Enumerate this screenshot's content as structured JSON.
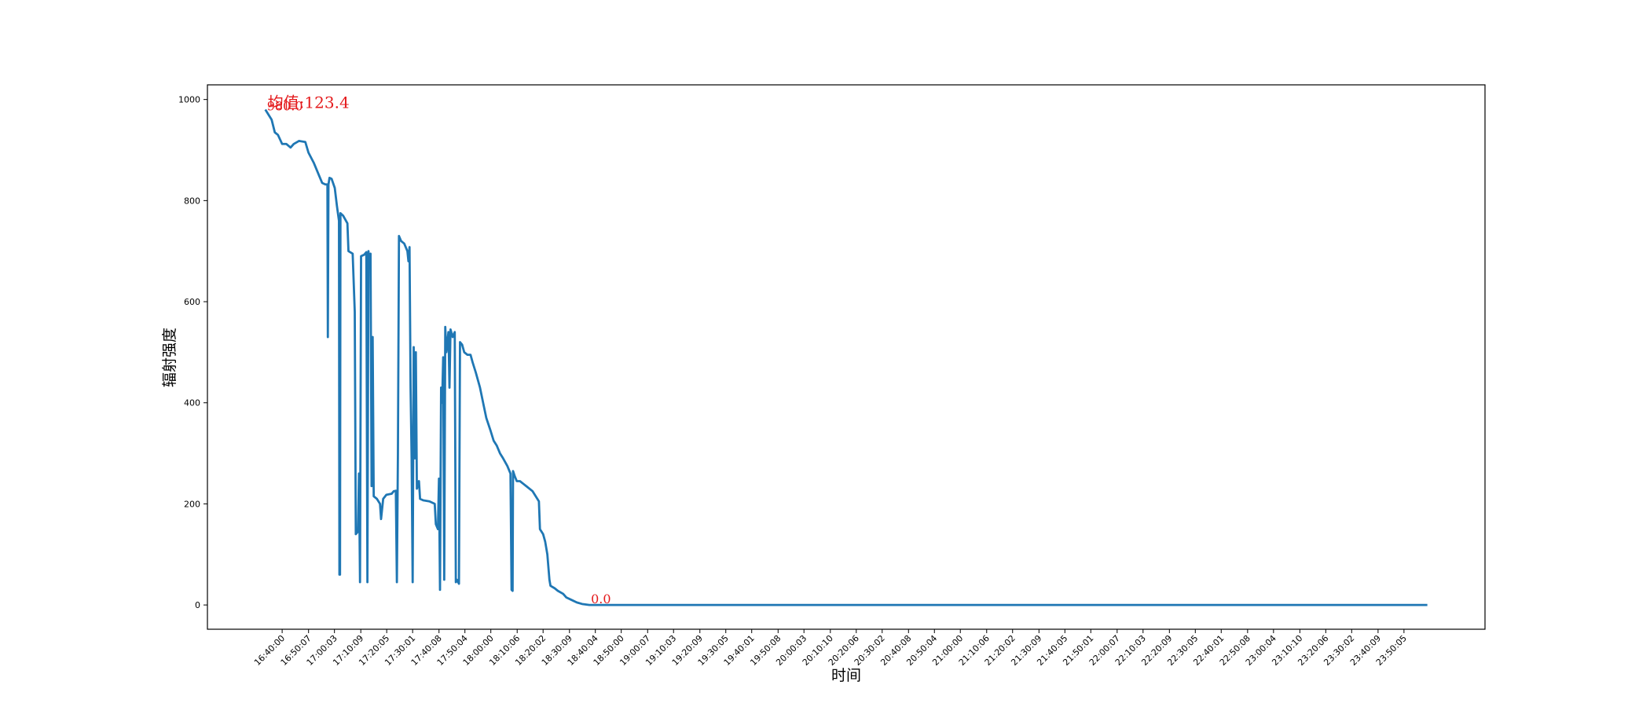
{
  "chart_data": {
    "type": "line",
    "xlabel": "时间",
    "ylabel": "辐射强度",
    "color": "#1f77b4",
    "annotations": [
      "均值:123.4",
      "980.0",
      "0.0"
    ],
    "xlim": [
      "16:11:21",
      "24:21:09"
    ],
    "ylim": [
      -48,
      1029
    ],
    "yticks": [
      0,
      200,
      400,
      600,
      800,
      1000
    ],
    "xticks": [
      "16:40:00",
      "16:50:07",
      "17:00:03",
      "17:10:09",
      "17:20:05",
      "17:30:01",
      "17:40:08",
      "17:50:04",
      "18:00:00",
      "18:10:06",
      "18:20:02",
      "18:30:09",
      "18:40:04",
      "18:50:00",
      "19:00:07",
      "19:10:03",
      "19:20:09",
      "19:30:05",
      "19:40:01",
      "19:50:08",
      "20:00:03",
      "20:10:10",
      "20:20:06",
      "20:30:02",
      "20:40:08",
      "20:50:04",
      "21:00:00",
      "21:10:06",
      "21:20:02",
      "21:30:09",
      "21:40:05",
      "21:50:01",
      "22:00:07",
      "22:10:03",
      "22:20:09",
      "22:30:05",
      "22:40:01",
      "22:50:08",
      "23:00:04",
      "23:10:10",
      "23:20:06",
      "23:30:02",
      "23:40:09",
      "23:50:05"
    ],
    "x": [
      "16:33:33",
      "16:35:58",
      "16:37:11",
      "16:38:23",
      "16:40:00",
      "16:41:37",
      "16:43:14",
      "16:44:26",
      "16:46:27",
      "16:48:53",
      "16:50:05",
      "16:52:06",
      "16:54:07",
      "16:55:20",
      "16:56:33",
      "16:57:21",
      "16:57:31",
      "16:57:45",
      "16:58:09",
      "16:58:58",
      "17:00:10",
      "17:00:59",
      "17:01:47",
      "17:01:57",
      "17:02:11",
      "17:02:21",
      "17:03:24",
      "17:05:01",
      "17:05:25",
      "17:07:02",
      "17:07:50",
      "17:08:14",
      "17:09:03",
      "17:09:27",
      "17:09:51",
      "17:10:15",
      "17:11:28",
      "17:12:16",
      "17:12:41",
      "17:13:05",
      "17:13:29",
      "17:13:53",
      "17:14:17",
      "17:14:42",
      "17:15:06",
      "17:16:19",
      "17:17:31",
      "17:17:55",
      "17:18:44",
      "17:19:57",
      "17:21:58",
      "17:22:46",
      "17:23:35",
      "17:23:59",
      "17:24:23",
      "17:24:47",
      "17:25:36",
      "17:26:48",
      "17:28:01",
      "17:28:25",
      "17:28:50",
      "17:29:14",
      "17:29:38",
      "17:30:02",
      "17:30:26",
      "17:30:51",
      "17:31:15",
      "17:31:39",
      "17:32:27",
      "17:32:52",
      "17:34:04",
      "17:36:29",
      "17:38:30",
      "17:38:55",
      "17:39:43",
      "17:40:07",
      "17:40:31",
      "17:40:56",
      "17:41:20",
      "17:41:44",
      "17:42:08",
      "17:42:32",
      "17:42:57",
      "17:43:21",
      "17:43:45",
      "17:44:09",
      "17:44:33",
      "17:45:22",
      "17:46:10",
      "17:46:35",
      "17:46:59",
      "17:47:47",
      "17:48:11",
      "17:49:00",
      "17:49:48",
      "17:51:01",
      "17:52:13",
      "17:53:01",
      "17:54:14",
      "17:55:51",
      "17:57:03",
      "17:58:16",
      "17:59:53",
      "18:01:05",
      "18:02:18",
      "18:03:31",
      "18:04:43",
      "18:06:20",
      "18:07:32",
      "18:07:57",
      "18:08:21",
      "18:08:31",
      "18:09:09",
      "18:09:57",
      "18:11:10",
      "18:12:23",
      "18:13:36",
      "18:16:01",
      "18:18:26",
      "18:18:50",
      "18:20:03",
      "18:20:51",
      "18:21:40",
      "18:22:28",
      "18:22:52",
      "18:24:29",
      "18:25:42",
      "18:27:43",
      "18:28:55",
      "18:30:56",
      "18:32:57",
      "18:34:58",
      "18:37:47",
      "23:59:03"
    ],
    "values": [
      980,
      960,
      935,
      930,
      912,
      912,
      905,
      912,
      918,
      916,
      895,
      875,
      850,
      835,
      832,
      832,
      530,
      832,
      845,
      843,
      825,
      790,
      760,
      60,
      60,
      775,
      770,
      755,
      700,
      695,
      580,
      140,
      145,
      260,
      45,
      690,
      693,
      698,
      45,
      700,
      670,
      695,
      235,
      530,
      215,
      210,
      200,
      170,
      210,
      218,
      220,
      225,
      226,
      45,
      300,
      730,
      720,
      715,
      700,
      680,
      708,
      430,
      290,
      45,
      510,
      290,
      500,
      230,
      245,
      210,
      207,
      205,
      200,
      160,
      150,
      250,
      30,
      430,
      400,
      490,
      50,
      550,
      500,
      520,
      540,
      430,
      545,
      530,
      540,
      45,
      50,
      42,
      520,
      515,
      500,
      495,
      495,
      480,
      460,
      430,
      400,
      370,
      345,
      325,
      315,
      300,
      290,
      275,
      260,
      30,
      28,
      265,
      255,
      245,
      245,
      240,
      235,
      225,
      205,
      150,
      140,
      125,
      100,
      50,
      38,
      33,
      28,
      22,
      15,
      10,
      5,
      2,
      0,
      0
    ]
  }
}
